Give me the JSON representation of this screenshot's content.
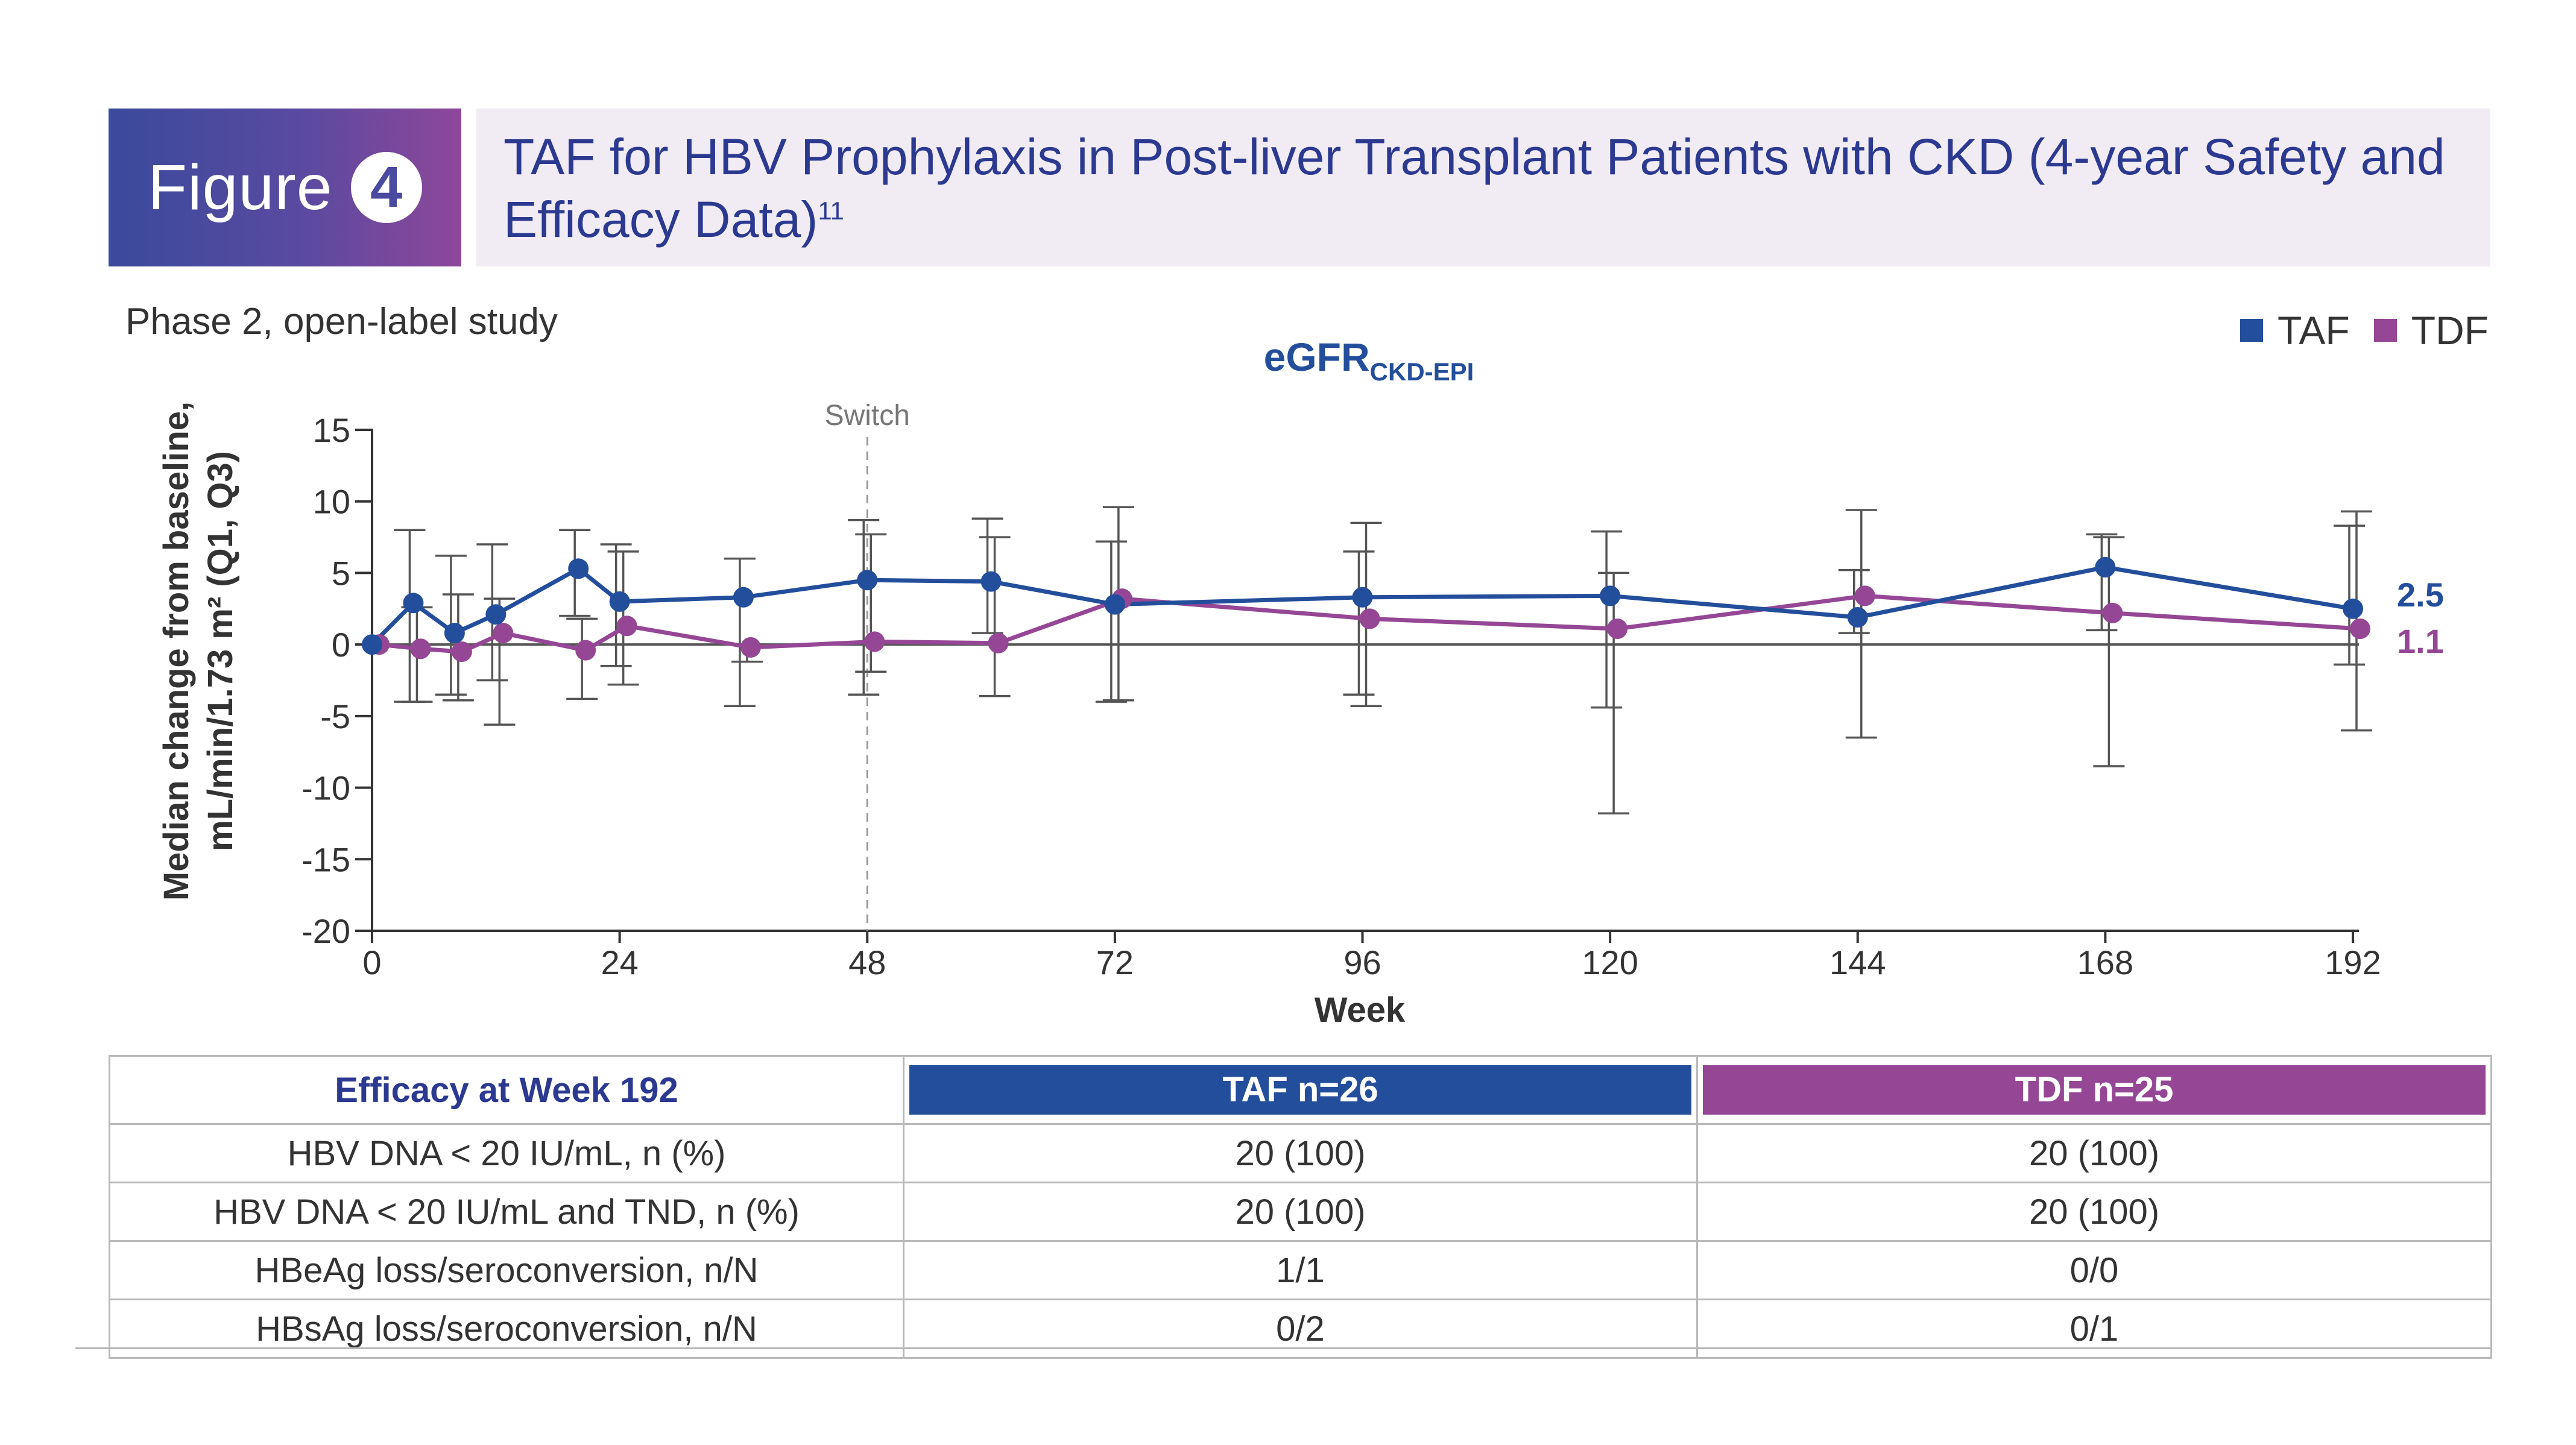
{
  "figure": {
    "label": "Figure",
    "number": "4",
    "title": "TAF for HBV Prophylaxis in Post-liver Transplant Patients with CKD (4-year Safety and Efficacy Data)",
    "title_ref": "11"
  },
  "subtitle": "Phase 2, open-label study",
  "legend": {
    "taf": "TAF",
    "tdf": "TDF"
  },
  "colors": {
    "taf": "#234e9b",
    "tdf": "#954795",
    "header_text": "#2b3990"
  },
  "chart_data": {
    "type": "line",
    "title": "eGFR",
    "title_subscript": "CKD-EPI",
    "xlabel": "Week",
    "ylabel_line1": "Median change from baseline,",
    "ylabel_line2": "mL/min/1.73 m² (Q1, Q3)",
    "xlim": [
      0,
      192
    ],
    "ylim": [
      -20,
      15
    ],
    "x_ticks": [
      0,
      24,
      48,
      72,
      96,
      120,
      144,
      168,
      192
    ],
    "y_ticks": [
      15,
      10,
      5,
      0,
      -5,
      -10,
      -15,
      -20
    ],
    "reference_line": {
      "x": 48,
      "label": "Switch"
    },
    "series": [
      {
        "name": "TAF",
        "color": "#234e9b",
        "end_label": "2.5",
        "points": [
          {
            "x": 0,
            "y": 0,
            "q1": 0,
            "q3": 0
          },
          {
            "x": 4,
            "y": 2.9,
            "q1": -4,
            "q3": 8
          },
          {
            "x": 8,
            "y": 0.8,
            "q1": -3.5,
            "q3": 6.2
          },
          {
            "x": 12,
            "y": 2.1,
            "q1": -2.5,
            "q3": 7
          },
          {
            "x": 20,
            "y": 5.3,
            "q1": 2,
            "q3": 8
          },
          {
            "x": 24,
            "y": 3,
            "q1": -1.5,
            "q3": 7
          },
          {
            "x": 36,
            "y": 3.3,
            "q1": -4.3,
            "q3": 6
          },
          {
            "x": 48,
            "y": 4.5,
            "q1": -3.5,
            "q3": 8.7
          },
          {
            "x": 60,
            "y": 4.4,
            "q1": 0.8,
            "q3": 8.8
          },
          {
            "x": 72,
            "y": 2.8,
            "q1": -4,
            "q3": 7.2
          },
          {
            "x": 96,
            "y": 3.3,
            "q1": -3.5,
            "q3": 6.5
          },
          {
            "x": 120,
            "y": 3.4,
            "q1": -4.4,
            "q3": 7.9
          },
          {
            "x": 144,
            "y": 1.9,
            "q1": 0.8,
            "q3": 5.2
          },
          {
            "x": 168,
            "y": 5.4,
            "q1": 1,
            "q3": 7.7
          },
          {
            "x": 192,
            "y": 2.5,
            "q1": -1.4,
            "q3": 8.3
          }
        ]
      },
      {
        "name": "TDF",
        "color": "#954795",
        "end_label": "1.1",
        "points": [
          {
            "x": 0,
            "y": 0,
            "q1": 0,
            "q3": 0
          },
          {
            "x": 4,
            "y": -0.3,
            "q1": -4,
            "q3": 2.6
          },
          {
            "x": 8,
            "y": -0.5,
            "q1": -3.9,
            "q3": 3.5
          },
          {
            "x": 12,
            "y": 0.8,
            "q1": -5.6,
            "q3": 3.2
          },
          {
            "x": 20,
            "y": -0.4,
            "q1": -3.8,
            "q3": 1.8
          },
          {
            "x": 24,
            "y": 1.3,
            "q1": -2.8,
            "q3": 6.5
          },
          {
            "x": 36,
            "y": -0.2,
            "q1": -1.2,
            "q3": 0
          },
          {
            "x": 48,
            "y": 0.2,
            "q1": -1.9,
            "q3": 7.7
          },
          {
            "x": 60,
            "y": 0.1,
            "q1": -3.6,
            "q3": 7.5
          },
          {
            "x": 72,
            "y": 3.2,
            "q1": -3.9,
            "q3": 9.6
          },
          {
            "x": 96,
            "y": 1.8,
            "q1": -4.3,
            "q3": 8.5
          },
          {
            "x": 120,
            "y": 1.1,
            "q1": -11.8,
            "q3": 5
          },
          {
            "x": 144,
            "y": 3.4,
            "q1": -6.5,
            "q3": 9.4
          },
          {
            "x": 168,
            "y": 2.2,
            "q1": -8.5,
            "q3": 7.5
          },
          {
            "x": 192,
            "y": 1.1,
            "q1": -6,
            "q3": 9.3
          }
        ]
      }
    ],
    "grid": false,
    "legend_position": "top-right"
  },
  "efficacy_table": {
    "header": "Efficacy at Week 192",
    "col_taf": "TAF n=26",
    "col_tdf": "TDF n=25",
    "rows": [
      {
        "label": "HBV DNA < 20 IU/mL, n (%)",
        "taf": "20 (100)",
        "tdf": "20 (100)"
      },
      {
        "label": "HBV DNA < 20 IU/mL and TND, n (%)",
        "taf": "20 (100)",
        "tdf": "20 (100)"
      },
      {
        "label": "HBeAg loss/seroconversion, n/N",
        "taf": "1/1",
        "tdf": "0/0"
      },
      {
        "label": "HBsAg loss/seroconversion, n/N",
        "taf": "0/2",
        "tdf": "0/1"
      }
    ]
  }
}
